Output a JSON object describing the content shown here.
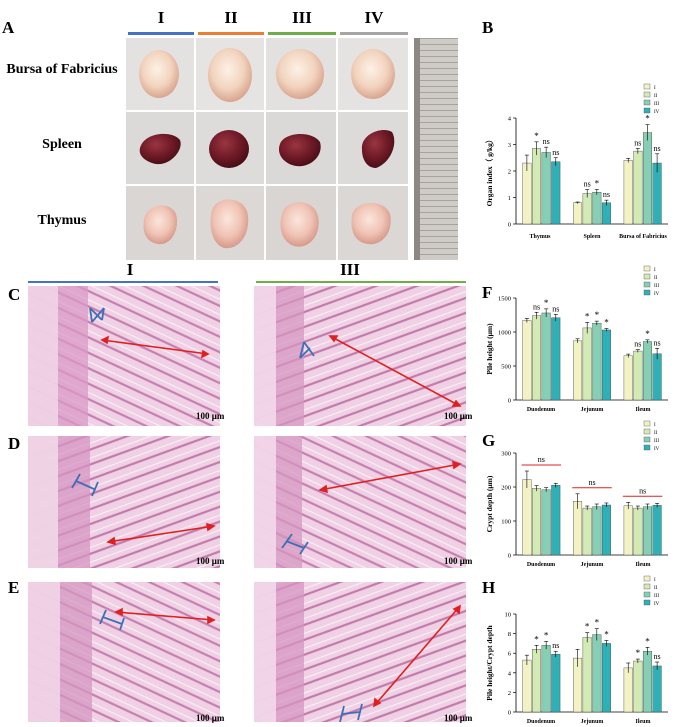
{
  "panels": {
    "A": "A",
    "B": "B",
    "C": "C",
    "D": "D",
    "E": "E",
    "F": "F",
    "G": "G",
    "H": "H"
  },
  "groups": [
    "I",
    "II",
    "III",
    "IV"
  ],
  "group_colors": [
    "#4472c4",
    "#ed7d31",
    "#70ad47",
    "#a5a5a5"
  ],
  "organs": [
    "Bursa of Fabricius",
    "Spleen",
    "Thymus"
  ],
  "histology_groups": [
    "I",
    "III"
  ],
  "scale_label": "100 μm",
  "legend": [
    "I",
    "II",
    "III",
    "IV"
  ],
  "series_colors": [
    "#f3f2c4",
    "#d3eab4",
    "#86cfb4",
    "#2fb0b6"
  ],
  "chart_data": [
    {
      "id": "B",
      "type": "bar",
      "ylabel": "Organ index（ g/kg）",
      "ylim": [
        0,
        4
      ],
      "yticks": [
        0,
        1,
        2,
        3,
        4
      ],
      "categories": [
        "Thymus",
        "Spleen",
        "Bursa of Fabricius"
      ],
      "series": [
        {
          "name": "I",
          "values": [
            2.3,
            0.8,
            2.4
          ],
          "err": [
            0.3,
            0.03,
            0.08
          ]
        },
        {
          "name": "II",
          "values": [
            2.85,
            1.15,
            2.75
          ],
          "err": [
            0.25,
            0.15,
            0.1
          ]
        },
        {
          "name": "III",
          "values": [
            2.7,
            1.2,
            3.45
          ],
          "err": [
            0.2,
            0.1,
            0.3
          ]
        },
        {
          "name": "IV",
          "values": [
            2.35,
            0.8,
            2.3
          ],
          "err": [
            0.15,
            0.1,
            0.35
          ]
        }
      ],
      "annotations": [
        [
          "",
          "*",
          "ns",
          "ns"
        ],
        [
          "",
          "ns",
          "*",
          "ns"
        ],
        [
          "",
          "ns",
          "*",
          "ns"
        ]
      ]
    },
    {
      "id": "F",
      "type": "bar",
      "ylabel": "Pile height (μm)",
      "ylim": [
        0,
        1500
      ],
      "yticks": [
        0,
        500,
        1000,
        1500
      ],
      "categories": [
        "Duodenum",
        "Jejunum",
        "Ileum"
      ],
      "series": [
        {
          "name": "I",
          "values": [
            1170,
            870,
            650
          ],
          "err": [
            30,
            30,
            25
          ]
        },
        {
          "name": "II",
          "values": [
            1240,
            1060,
            720
          ],
          "err": [
            50,
            80,
            20
          ]
        },
        {
          "name": "III",
          "values": [
            1280,
            1130,
            860
          ],
          "err": [
            60,
            30,
            25
          ]
        },
        {
          "name": "IV",
          "values": [
            1210,
            1030,
            680
          ],
          "err": [
            50,
            20,
            80
          ]
        }
      ],
      "annotations": [
        [
          "",
          "ns",
          "*",
          "ns"
        ],
        [
          "",
          "*",
          "*",
          "*"
        ],
        [
          "",
          "ns",
          "*",
          "ns"
        ]
      ]
    },
    {
      "id": "G",
      "type": "bar",
      "ylabel": "Crypt depth (μm)",
      "ylim": [
        0,
        300
      ],
      "yticks": [
        0,
        100,
        200,
        300
      ],
      "categories": [
        "Duodenum",
        "Jejunum",
        "Ileum"
      ],
      "series": [
        {
          "name": "I",
          "values": [
            222,
            158,
            145
          ],
          "err": [
            25,
            22,
            10
          ]
        },
        {
          "name": "II",
          "values": [
            196,
            138,
            138
          ],
          "err": [
            8,
            6,
            6
          ]
        },
        {
          "name": "III",
          "values": [
            192,
            142,
            142
          ],
          "err": [
            6,
            8,
            8
          ]
        },
        {
          "name": "IV",
          "values": [
            205,
            147,
            146
          ],
          "err": [
            6,
            6,
            6
          ]
        }
      ],
      "annotations": [
        [
          "ns"
        ],
        [
          "ns"
        ],
        [
          "ns"
        ]
      ]
    },
    {
      "id": "H",
      "type": "bar",
      "ylabel": "Pile height/Crypt depth",
      "ylim": [
        0,
        10
      ],
      "yticks": [
        0,
        2,
        4,
        6,
        8,
        10
      ],
      "categories": [
        "Duodenum",
        "Jejunum",
        "Ileum"
      ],
      "series": [
        {
          "name": "I",
          "values": [
            5.3,
            5.5,
            4.5
          ],
          "err": [
            0.5,
            0.9,
            0.5
          ]
        },
        {
          "name": "II",
          "values": [
            6.4,
            7.6,
            5.2
          ],
          "err": [
            0.4,
            0.5,
            0.2
          ]
        },
        {
          "name": "III",
          "values": [
            6.8,
            7.9,
            6.2
          ],
          "err": [
            0.4,
            0.6,
            0.4
          ]
        },
        {
          "name": "IV",
          "values": [
            5.9,
            7.0,
            4.7
          ],
          "err": [
            0.3,
            0.3,
            0.4
          ]
        }
      ],
      "annotations": [
        [
          "",
          "*",
          "*",
          "ns"
        ],
        [
          "",
          "*",
          "*",
          "*"
        ],
        [
          "",
          "*",
          "*",
          "ns"
        ]
      ]
    }
  ]
}
